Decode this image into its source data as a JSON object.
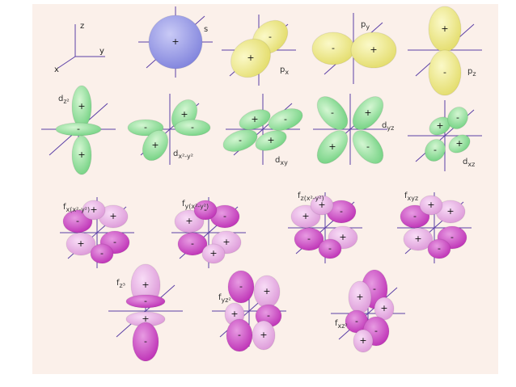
{
  "axes": {
    "z": "z",
    "y": "y",
    "x": "x"
  },
  "orbitals": [
    {
      "label": {
        "base": "s"
      },
      "signs": [
        "+"
      ]
    },
    {
      "label": {
        "base": "p",
        "sub": "x"
      },
      "signs": [
        "-",
        "+"
      ]
    },
    {
      "label": {
        "base": "p",
        "sub": "y"
      },
      "signs": [
        "-",
        "+"
      ]
    },
    {
      "label": {
        "base": "p",
        "sub": "z"
      },
      "signs": [
        "+",
        "-"
      ]
    },
    {
      "label": {
        "base": "d",
        "sub": "z²"
      },
      "signs": [
        "+",
        "-",
        "+"
      ]
    },
    {
      "label": {
        "base": "d",
        "sub": "x²-y²"
      },
      "signs": [
        "+",
        "-",
        "-",
        "+"
      ]
    },
    {
      "label": {
        "base": "d",
        "sub": "xy"
      },
      "signs": [
        "+",
        "-",
        "-",
        "+"
      ]
    },
    {
      "label": {
        "base": "d",
        "sub": "yz"
      },
      "signs": [
        "-",
        "+",
        "+",
        "-"
      ]
    },
    {
      "label": {
        "base": "d",
        "sub": "xz"
      },
      "signs": [
        "+",
        "-",
        "-",
        "+"
      ]
    },
    {
      "label": {
        "base": "f",
        "sub": "x(x²-y²)"
      },
      "signs": [
        "-",
        "+",
        "+",
        "-",
        "+",
        "-"
      ]
    },
    {
      "label": {
        "base": "f",
        "sub": "y(x²-y²)"
      },
      "signs": [
        "+",
        "-",
        "-",
        "+",
        "-",
        "+"
      ]
    },
    {
      "label": {
        "base": "f",
        "sub": "z(x²-y²)"
      },
      "signs": [
        "+",
        "-",
        "-",
        "+",
        "+",
        "-"
      ]
    },
    {
      "label": {
        "base": "f",
        "sub": "xyz"
      },
      "signs": [
        "-",
        "+",
        "+",
        "-",
        "+",
        "-"
      ]
    },
    {
      "label": {
        "base": "f",
        "sub": "z³"
      },
      "signs": [
        "+",
        "-",
        "+",
        "-"
      ]
    },
    {
      "label": {
        "base": "f",
        "sub": "yz²"
      },
      "signs": [
        "-",
        "+",
        "+",
        "-",
        "-",
        "+"
      ]
    },
    {
      "label": {
        "base": "f",
        "sub": "xz²"
      },
      "signs": [
        "-",
        "+",
        "+",
        "-",
        "-",
        "+"
      ]
    }
  ]
}
